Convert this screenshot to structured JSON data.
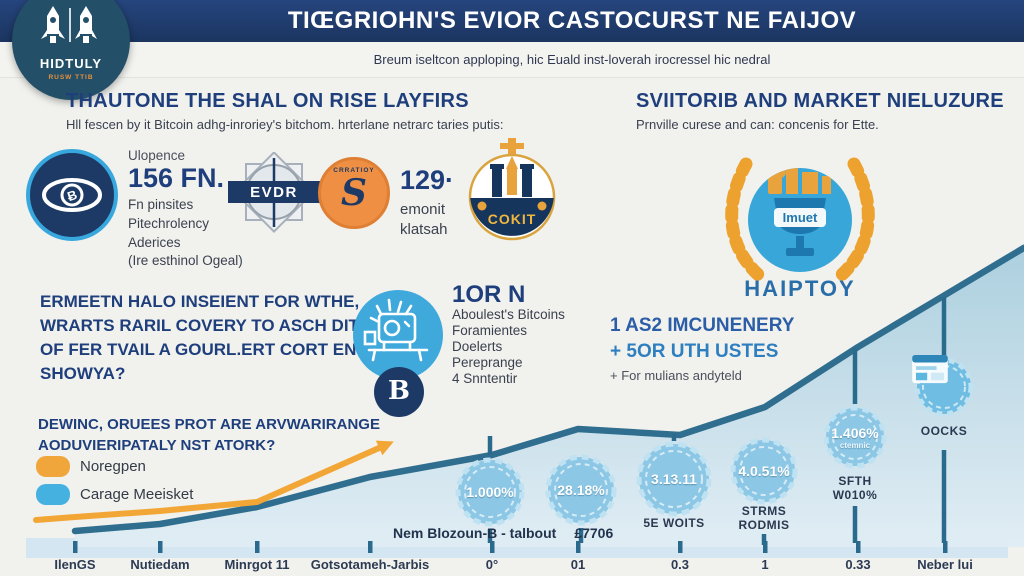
{
  "colors": {
    "header_navy": "#1e3a68",
    "navy": "#1d3a66",
    "title_blue": "#1e3f7c",
    "accent_blue": "#2e7fc0",
    "light_blue": "#3fa9dc",
    "badge_blue": "#8cc7e5",
    "orange": "#f0a63a",
    "coin_orange": "#ee8f44",
    "line_teal": "#2f6e8e",
    "axis_band": "#d3e6f1",
    "gold": "#e8a33c"
  },
  "header": {
    "title": "TIŒGRIOHN'S EVIOR CASTOCURST NE FAIJOV",
    "subtitle": "Breum iseltcon apploping, hic Euald inst-loverah irocressel hic nedral",
    "logo_line1": "HIDTULY",
    "logo_line2": "RUSW TTIB"
  },
  "sections": {
    "left": {
      "title": "THAUTONE THE SHAL ON RISE LAYFIRS",
      "subtitle": "Hll fescen by it Bitcoin adhg-inroriey's bitchom. hrterlane netrarc taries putis:"
    },
    "right": {
      "title": "SVIITORIB AND MARKET NIELUZURE",
      "subtitle": "Prnville curese and can: concenis for Ette."
    }
  },
  "stats": {
    "stat1": {
      "label": "Ulopence",
      "value": "156 FN.",
      "lines": [
        "Fn pinsites",
        "Pitechrolency",
        "Aderices",
        "(Ire esthinol Ogeal)"
      ]
    },
    "medal_label": "EVDR",
    "coin_arc": "CRRATIOY",
    "coin_glyph": "S",
    "stat2": {
      "value": "129·",
      "lines": [
        "emonit",
        "klatsah"
      ]
    },
    "cokit_label": "COKIT",
    "award": {
      "badge": "Imuet",
      "label": "HAIPTOY"
    }
  },
  "question1": {
    "lines": [
      "ERMEETN HALO INSEIENT FOR WTHE,",
      "WRARTS RARIL COVERY TO ASCH DITTIE,",
      "OF FER TVAIL A GOURL.ERT CORT ENOR",
      "SHOWYA?"
    ]
  },
  "feature": {
    "title": "1OR N",
    "lines": [
      "Aboulest's Bitcoins",
      "Foramientes",
      "Doelerts",
      "Pereprange",
      "4 Snntentir"
    ],
    "coin_letter": "B"
  },
  "highlight": {
    "line1": "1 AS2 IMCUNENERY",
    "line2": "+ 5OR UTH USTES",
    "line3": "+ For mulians andyteld"
  },
  "question2": {
    "lines": [
      "DEWINC, ORUEES PROT ARE ARVWARIRANGE",
      "AODUVIERIPATALY NST ATORK?"
    ]
  },
  "legend": {
    "items": [
      {
        "label": "Noregpen",
        "color": "#f0a63a"
      },
      {
        "label": "Carage Meeisket",
        "color": "#45b1e0"
      }
    ]
  },
  "chart_note": {
    "text": "Nem Blozoun-B - talbout",
    "value": "£7706"
  },
  "badges": [
    {
      "value": "1.000%",
      "caption": ""
    },
    {
      "value": "28.18%",
      "caption": ""
    },
    {
      "value": "3.13.11",
      "caption": "5E WOITS"
    },
    {
      "value": "4.0.51%",
      "caption": "STRMS\nRODMIS"
    },
    {
      "value": "1.406%",
      "sub": "ctemnic",
      "caption": "SFTH\nW010%"
    },
    {
      "value": "",
      "caption": "OOCKS",
      "icon": "browser-window-icon"
    }
  ],
  "chart_data": {
    "type": "area",
    "title": "",
    "categories": [
      "IlenGS",
      "Nutiedam",
      "Minrgot 11",
      "Gotsotameh-Jarbis",
      "0°",
      "01",
      "0.3",
      "1",
      "0.33",
      "Neber lui"
    ],
    "series": [
      {
        "name": "Carage Meeisket",
        "color": "#2f6e8e",
        "values": [
          16,
          23,
          40,
          70,
          92,
          118,
          112,
          140,
          200,
          252
        ]
      },
      {
        "name": "Noregpen",
        "color": "#f0a63a",
        "values": [
          30,
          36,
          45,
          95,
          null,
          null,
          null,
          null,
          null,
          null
        ]
      }
    ],
    "xlabel": "",
    "ylabel": "",
    "ylim": [
      0,
      320
    ],
    "grid": false,
    "legend_position": "left",
    "annotations": [
      "1.000%",
      "28.18%",
      "3.13.11 5E WOITS",
      "4.0.51% STRMS RODMIS",
      "1.406% SFTH W010%",
      "OOCKS"
    ]
  }
}
